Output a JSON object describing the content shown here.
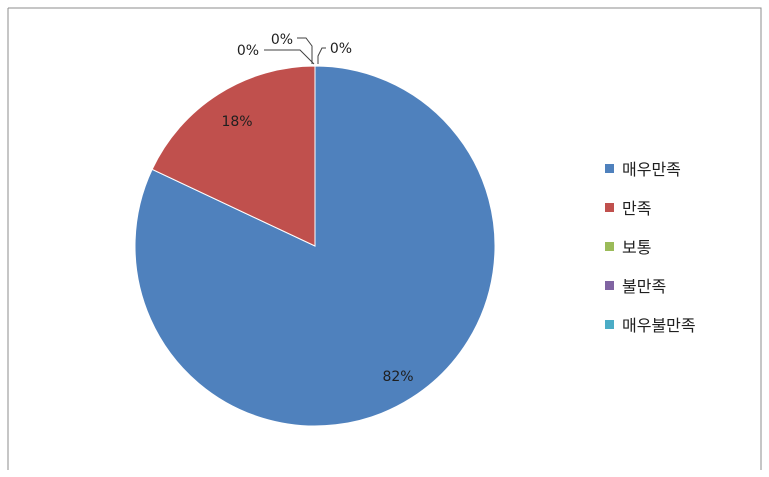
{
  "chart_data": {
    "type": "pie",
    "categories": [
      "매우만족",
      "만족",
      "보통",
      "불만족",
      "매우불만족"
    ],
    "values": [
      82,
      18,
      0,
      0,
      0
    ],
    "value_labels": [
      "82%",
      "18%",
      "0%",
      "0%",
      "0%"
    ],
    "colors": [
      "#4F81BD",
      "#C0504D",
      "#9BBB59",
      "#8064A2",
      "#4BACC6"
    ],
    "legend_position": "right",
    "title": ""
  }
}
